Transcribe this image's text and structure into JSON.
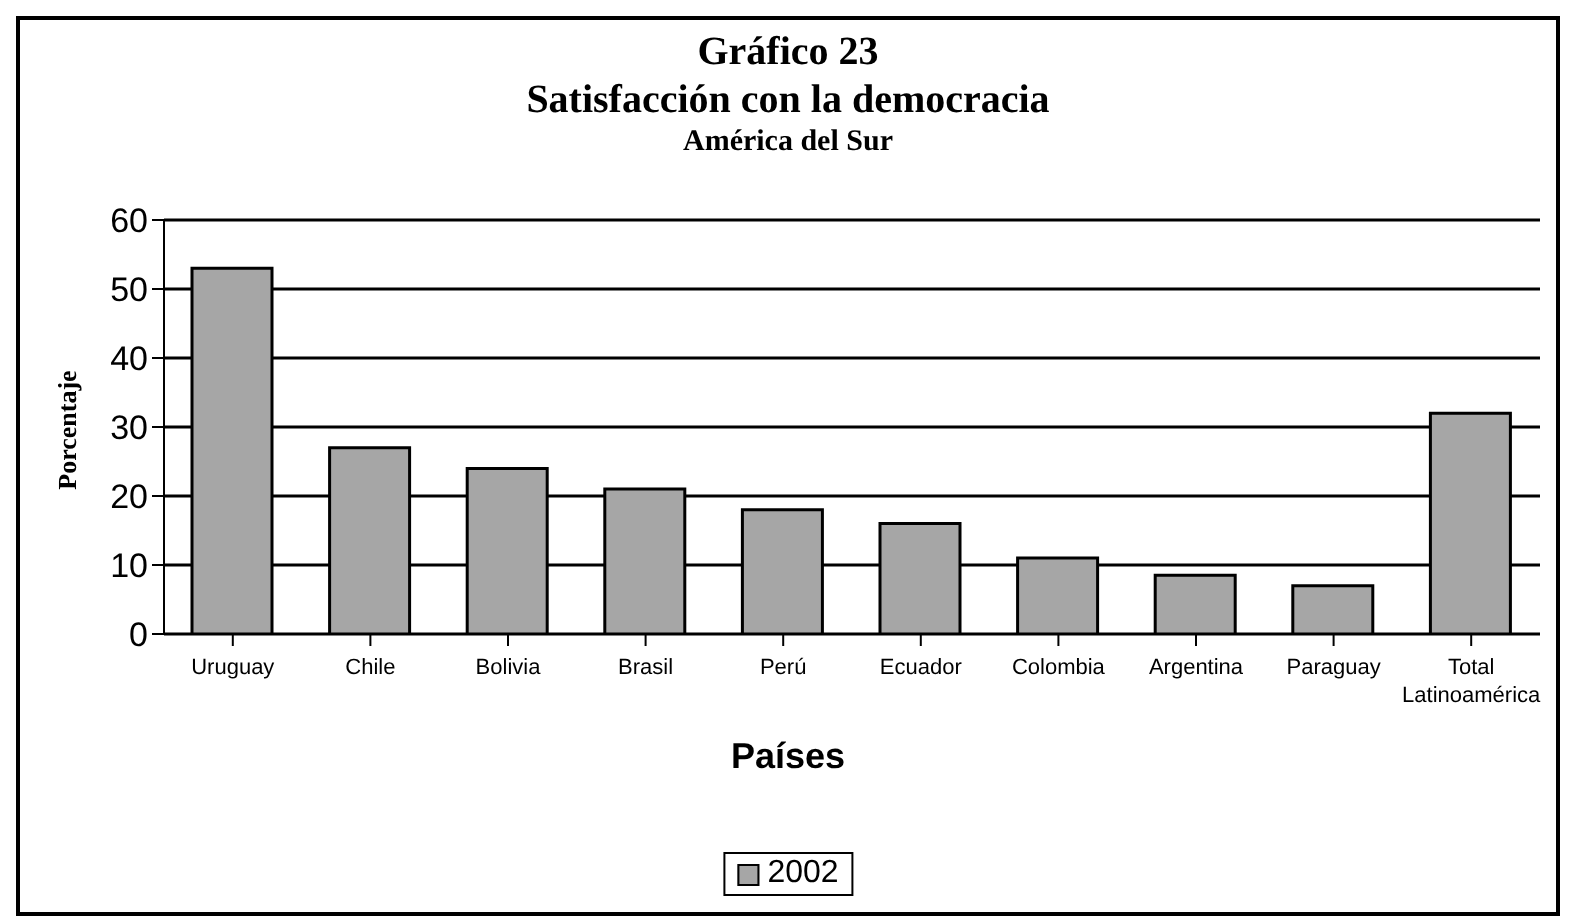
{
  "chart_data": {
    "type": "bar",
    "title": "Gráfico 23",
    "subtitle": "Satisfacción con la democracia",
    "annotations": [
      "América del Sur"
    ],
    "xlabel": "Países",
    "ylabel": "Porcentaje",
    "categories": [
      "Uruguay",
      "Chile",
      "Bolivia",
      "Brasil",
      "Perú",
      "Ecuador",
      "Colombia",
      "Argentina",
      "Paraguay",
      "Total Latinoamérica"
    ],
    "series": [
      {
        "name": "2002",
        "color": "#a6a6a6",
        "values": [
          53,
          27,
          24,
          21,
          18,
          16,
          11,
          8.5,
          7,
          32
        ]
      }
    ],
    "ylim": [
      0,
      60
    ],
    "yticks": [
      0,
      10,
      20,
      30,
      40,
      50,
      60
    ],
    "grid": "y",
    "legend": "bottom"
  }
}
